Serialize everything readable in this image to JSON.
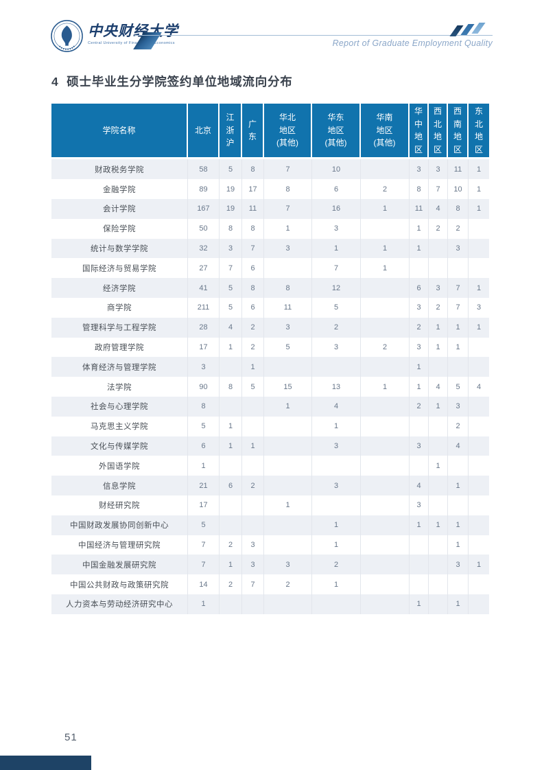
{
  "header": {
    "logo_title": "中央财经大学",
    "logo_subtitle": "Central University of Finance and Economics",
    "tagline": "Report of Graduate Employment Quality"
  },
  "section": {
    "title": "4 硕士毕业生分学院签约单位地域流向分布"
  },
  "table": {
    "columns": [
      "学院名称",
      "北京",
      "江\n浙\n沪",
      "广\n东",
      "华北\n地区\n(其他)",
      "华东\n地区\n(其他)",
      "华南\n地区\n(其他)",
      "华\n中\n地\n区",
      "西\n北\n地\n区",
      "西\n南\n地\n区",
      "东\n北\n地\n区"
    ],
    "rows": [
      {
        "label": "财政税务学院",
        "values": [
          "58",
          "5",
          "8",
          "7",
          "10",
          "",
          "3",
          "3",
          "11",
          "1"
        ]
      },
      {
        "label": "金融学院",
        "values": [
          "89",
          "19",
          "17",
          "8",
          "6",
          "2",
          "8",
          "7",
          "10",
          "1"
        ]
      },
      {
        "label": "会计学院",
        "values": [
          "167",
          "19",
          "11",
          "7",
          "16",
          "1",
          "11",
          "4",
          "8",
          "1"
        ]
      },
      {
        "label": "保险学院",
        "values": [
          "50",
          "8",
          "8",
          "1",
          "3",
          "",
          "1",
          "2",
          "2",
          ""
        ]
      },
      {
        "label": "统计与数学学院",
        "values": [
          "32",
          "3",
          "7",
          "3",
          "1",
          "1",
          "1",
          "",
          "3",
          ""
        ]
      },
      {
        "label": "国际经济与贸易学院",
        "values": [
          "27",
          "7",
          "6",
          "",
          "7",
          "1",
          "",
          "",
          "",
          ""
        ]
      },
      {
        "label": "经济学院",
        "values": [
          "41",
          "5",
          "8",
          "8",
          "12",
          "",
          "6",
          "3",
          "7",
          "1"
        ]
      },
      {
        "label": "商学院",
        "values": [
          "211",
          "5",
          "6",
          "11",
          "5",
          "",
          "3",
          "2",
          "7",
          "3"
        ]
      },
      {
        "label": "管理科学与工程学院",
        "values": [
          "28",
          "4",
          "2",
          "3",
          "2",
          "",
          "2",
          "1",
          "1",
          "1"
        ]
      },
      {
        "label": "政府管理学院",
        "values": [
          "17",
          "1",
          "2",
          "5",
          "3",
          "2",
          "3",
          "1",
          "1",
          ""
        ]
      },
      {
        "label": "体育经济与管理学院",
        "values": [
          "3",
          "",
          "1",
          "",
          "",
          "",
          "1",
          "",
          "",
          ""
        ]
      },
      {
        "label": "法学院",
        "values": [
          "90",
          "8",
          "5",
          "15",
          "13",
          "1",
          "1",
          "4",
          "5",
          "4"
        ]
      },
      {
        "label": "社会与心理学院",
        "values": [
          "8",
          "",
          "",
          "1",
          "4",
          "",
          "2",
          "1",
          "3",
          ""
        ]
      },
      {
        "label": "马克思主义学院",
        "values": [
          "5",
          "1",
          "",
          "",
          "1",
          "",
          "",
          "",
          "2",
          ""
        ]
      },
      {
        "label": "文化与传媒学院",
        "values": [
          "6",
          "1",
          "1",
          "",
          "3",
          "",
          "3",
          "",
          "4",
          ""
        ]
      },
      {
        "label": "外国语学院",
        "values": [
          "1",
          "",
          "",
          "",
          "",
          "",
          "",
          "1",
          "",
          ""
        ]
      },
      {
        "label": "信息学院",
        "values": [
          "21",
          "6",
          "2",
          "",
          "3",
          "",
          "4",
          "",
          "1",
          ""
        ]
      },
      {
        "label": "财经研究院",
        "values": [
          "17",
          "",
          "",
          "1",
          "",
          "",
          "3",
          "",
          "",
          ""
        ]
      },
      {
        "label": "中国财政发展协同创新中心",
        "values": [
          "5",
          "",
          "",
          "",
          "1",
          "",
          "1",
          "1",
          "1",
          ""
        ]
      },
      {
        "label": "中国经济与管理研究院",
        "values": [
          "7",
          "2",
          "3",
          "",
          "1",
          "",
          "",
          "",
          "1",
          ""
        ]
      },
      {
        "label": "中国金融发展研究院",
        "values": [
          "7",
          "1",
          "3",
          "3",
          "2",
          "",
          "",
          "",
          "3",
          "1"
        ]
      },
      {
        "label": "中国公共财政与政策研究院",
        "values": [
          "14",
          "2",
          "7",
          "2",
          "1",
          "",
          "",
          "",
          "",
          ""
        ]
      },
      {
        "label": "人力资本与劳动经济研究中心",
        "values": [
          "1",
          "",
          "",
          "",
          "",
          "",
          "1",
          "",
          "1",
          ""
        ]
      }
    ]
  },
  "footer": {
    "page_number": "51"
  },
  "icons": {
    "seal": "university-seal",
    "slashes": "triple-slash"
  },
  "colors": {
    "table_header_blue": "#1173ad",
    "row_alt_background": "#edf0f5",
    "footer_bar_navy": "#1e4366",
    "logo_navy": "#1c3f6e",
    "tagline_blue": "#8aa6c8",
    "cell_text": "#68778a"
  }
}
